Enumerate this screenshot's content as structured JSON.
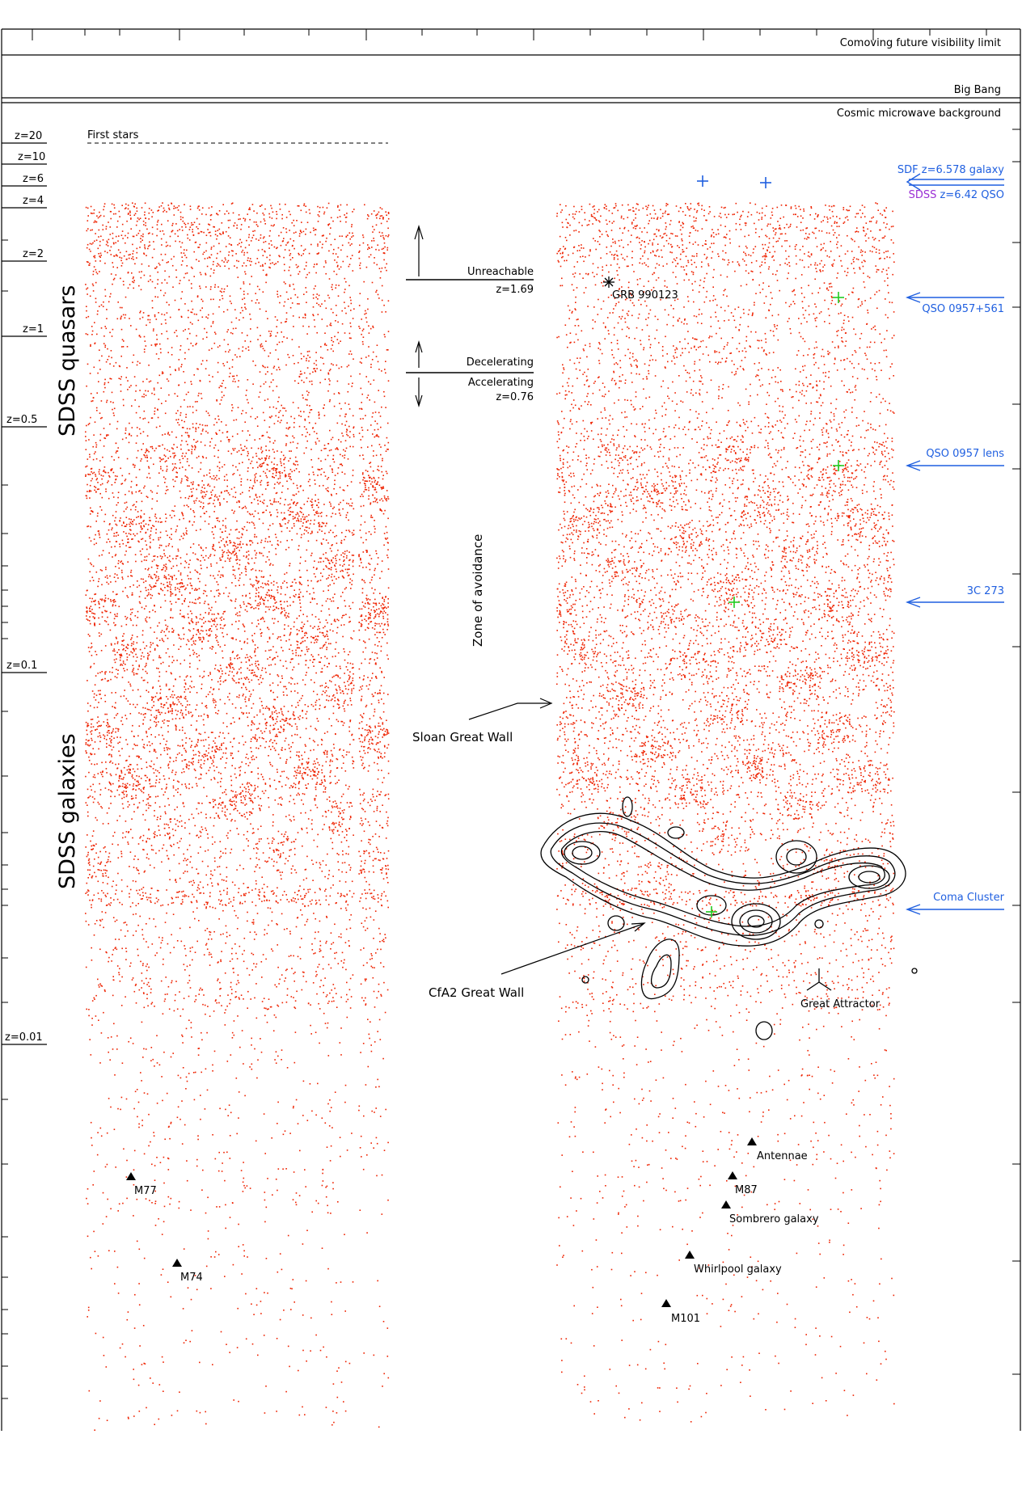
{
  "top_bands": {
    "comoving_limit": "Comoving future visibility limit",
    "big_bang": "Big Bang",
    "cmb": "Cosmic microwave background"
  },
  "first_stars": "First stars",
  "redshift_labels": [
    "z=20",
    "z=10",
    "z=6",
    "z=4",
    "z=2",
    "z=1",
    "z=0.5",
    "z=0.1",
    "z=0.01"
  ],
  "side_labels": {
    "quasars": "SDSS quasars",
    "galaxies": "SDSS galaxies"
  },
  "middle_annotations": {
    "unreachable": "Unreachable",
    "z_unreachable": "z=1.69",
    "decelerating": "Decelerating",
    "accelerating": "Accelerating",
    "z_accel": "z=0.76",
    "zone_of_avoidance": "Zone of avoidance",
    "sloan_great_wall": "Sloan Great Wall",
    "cfa2_great_wall": "CfA2 Great Wall",
    "great_attractor": "Great Attractor"
  },
  "right_callouts": {
    "sdf": "SDF z=6.578 galaxy",
    "sdss_prefix": "SDSS",
    "sdss_rest": " z=6.42 QSO",
    "qso_0957": "QSO 0957+561",
    "qso_lens": "QSO 0957 lens",
    "3c273": "3C 273",
    "coma": "Coma Cluster"
  },
  "objects": {
    "grb": "GRB 990123",
    "m77": "M77",
    "m74": "M74",
    "antennae": "Antennae",
    "m87": "M87",
    "sombrero": "Sombrero galaxy",
    "whirlpool": "Whirlpool galaxy",
    "m101": "M101"
  },
  "colors": {
    "points": "#ee2200",
    "callout_blue": "#1f5fe0",
    "sdss_purple": "#9b2fd4",
    "markers_green": "#22cc22",
    "ink": "#000000"
  }
}
